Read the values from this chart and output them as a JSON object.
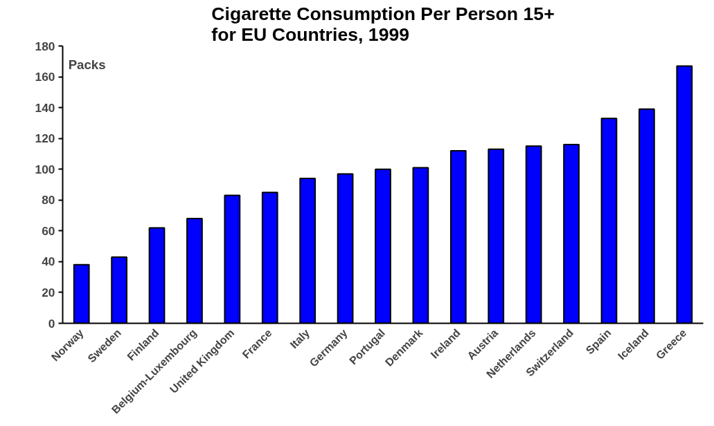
{
  "chart_data": {
    "type": "bar",
    "title": "Cigarette Consumption Per Person 15+ for EU Countries, 1999",
    "categories": [
      "Norway",
      "Sweden",
      "Finland",
      "Belgium-Luxembourg",
      "United Kingdom",
      "France",
      "Italy",
      "Germany",
      "Portugal",
      "Denmark",
      "Ireland",
      "Austria",
      "Netherlands",
      "Switzerland",
      "Spain",
      "Iceland",
      "Greece"
    ],
    "values": [
      38,
      43,
      62,
      68,
      83,
      85,
      94,
      97,
      100,
      101,
      112,
      113,
      115,
      116,
      133,
      139,
      167
    ],
    "color": "#0000ff",
    "ylim": [
      0,
      180
    ],
    "yticks": [
      0,
      20,
      40,
      60,
      80,
      100,
      120,
      140,
      160,
      180
    ],
    "annotations": [
      "Packs"
    ],
    "grid": false
  }
}
